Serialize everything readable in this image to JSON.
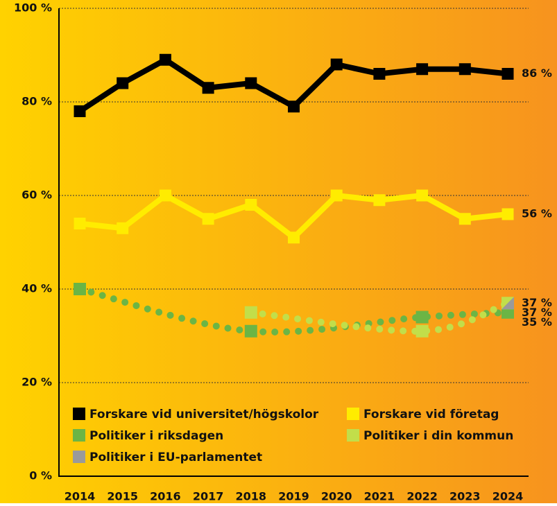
{
  "chart_data": {
    "type": "line",
    "xlim": [
      2013.5,
      2024.5
    ],
    "xticks": [
      2014,
      2015,
      2016,
      2017,
      2018,
      2019,
      2020,
      2021,
      2022,
      2023,
      2024
    ],
    "ylim": [
      0,
      100
    ],
    "yticks": [
      {
        "value": 0,
        "label": "0 %"
      },
      {
        "value": 20,
        "label": "20 %"
      },
      {
        "value": 40,
        "label": "40 %"
      },
      {
        "value": 60,
        "label": "60 %"
      },
      {
        "value": 80,
        "label": "80 %"
      },
      {
        "value": 100,
        "label": "100 %"
      }
    ],
    "grid": true,
    "legend": "lower left",
    "series": [
      {
        "name": "Forskare vid universitet/högskolor",
        "color": "#000000",
        "style": "solid",
        "x": [
          2014,
          2015,
          2016,
          2017,
          2018,
          2019,
          2020,
          2021,
          2022,
          2023,
          2024
        ],
        "values": [
          78,
          84,
          89,
          83,
          84,
          79,
          88,
          86,
          87,
          87,
          86
        ],
        "value_labels": [
          null,
          null,
          null,
          null,
          null,
          null,
          null,
          null,
          null,
          null,
          "86 %"
        ]
      },
      {
        "name": "Forskare vid företag",
        "color": "#FFEC00",
        "style": "solid",
        "x": [
          2014,
          2015,
          2016,
          2017,
          2018,
          2019,
          2020,
          2021,
          2022,
          2023,
          2024
        ],
        "values": [
          54,
          53,
          60,
          55,
          58,
          51,
          60,
          59,
          60,
          55,
          56
        ],
        "value_labels": [
          null,
          null,
          null,
          null,
          null,
          null,
          null,
          null,
          null,
          null,
          "56 %"
        ]
      },
      {
        "name": "Politiker i riksdagen",
        "color": "#6BB545",
        "style": "dotted",
        "x": [
          2014,
          2018,
          2022,
          2024
        ],
        "values": [
          40,
          31,
          34,
          35
        ],
        "value_labels": [
          null,
          null,
          null,
          "35 %"
        ]
      },
      {
        "name": "Politiker i din kommun",
        "color": "#C2DE4A",
        "style": "dotted",
        "x": [
          2018,
          2022,
          2024
        ],
        "values": [
          35,
          31,
          37
        ],
        "value_labels": [
          null,
          null,
          "37 %"
        ]
      },
      {
        "name": "Politiker i EU-parlamentet",
        "color": "#9A9A9A",
        "style": "dotted",
        "x": [
          2024
        ],
        "values": [
          37
        ],
        "value_labels": [
          "37 %"
        ]
      }
    ]
  }
}
